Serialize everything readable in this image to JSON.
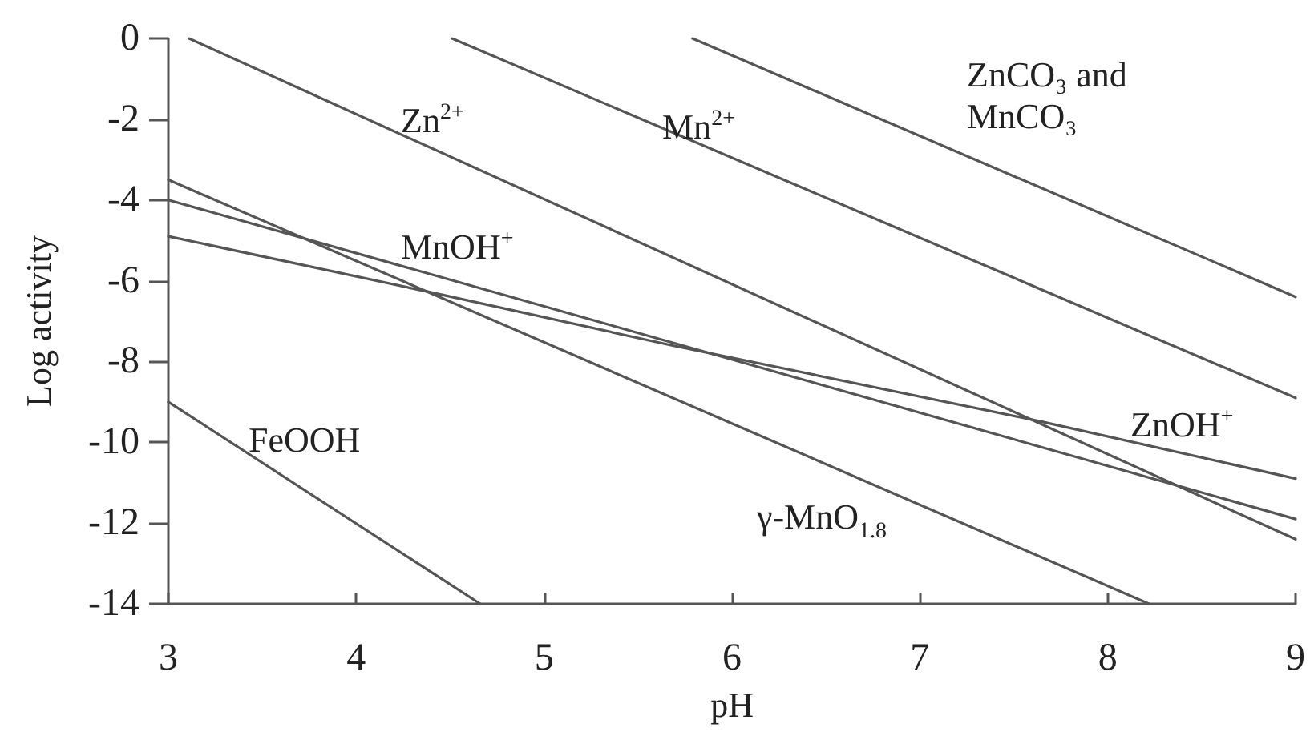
{
  "chart_data": {
    "type": "line",
    "xlabel": "pH",
    "ylabel": "Log activity",
    "xlim": [
      3,
      9
    ],
    "ylim": [
      -14,
      0
    ],
    "xticks": [
      3,
      4,
      5,
      6,
      7,
      8,
      9
    ],
    "yticks": [
      -14,
      -12,
      -10,
      -8,
      -6,
      -4,
      -2,
      0
    ],
    "grid": false,
    "marker": "none",
    "line_style": "solid",
    "series": [
      {
        "color": "#555555",
        "x": [
          3.11,
          9
        ],
        "values": [
          0,
          -12.4
        ]
      },
      {
        "color": "#555555",
        "x": [
          4.51,
          9
        ],
        "values": [
          0,
          -8.9
        ]
      },
      {
        "color": "#555555",
        "x": [
          5.79,
          9
        ],
        "values": [
          0,
          -6.4
        ]
      },
      {
        "color": "#555555",
        "x": [
          3,
          8.22
        ],
        "values": [
          -3.5,
          -14
        ]
      },
      {
        "color": "#555555",
        "x": [
          3,
          9
        ],
        "values": [
          -4.0,
          -11.9
        ]
      },
      {
        "color": "#555555",
        "x": [
          3,
          4.38,
          5.68,
          7.66,
          9
        ],
        "values": [
          -4.9,
          -6.27,
          -7.6,
          -9.5,
          -10.9
        ]
      },
      {
        "color": "#555555",
        "x": [
          3,
          4.66
        ],
        "values": [
          -9.0,
          -14
        ]
      }
    ],
    "annotations": [
      "Zn$^{2+}$",
      "Mn$^{2+}$",
      "ZnCO₃ and MnCO₃",
      "MnOH$^{+}$",
      "ZnOH$^{+}$",
      "FeOOH",
      "γ-MnO$_{1.8}$"
    ]
  }
}
